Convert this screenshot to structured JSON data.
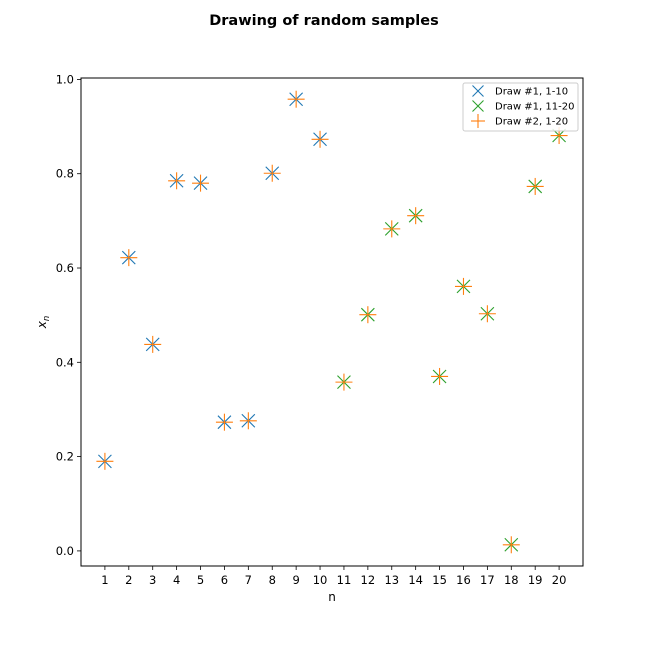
{
  "chart_data": {
    "type": "scatter",
    "title": "Drawing of random samples",
    "xlabel": "n",
    "ylabel": "x",
    "ylabel_subscript": "n",
    "xlim": [
      0,
      21
    ],
    "ylim": [
      -0.032,
      1.003
    ],
    "xticks": [
      1,
      2,
      3,
      4,
      5,
      6,
      7,
      8,
      9,
      10,
      11,
      12,
      13,
      14,
      15,
      16,
      17,
      18,
      19,
      20
    ],
    "yticks": [
      0.0,
      0.2,
      0.4,
      0.6,
      0.8,
      1.0
    ],
    "ytick_labels": [
      "0.0",
      "0.2",
      "0.4",
      "0.6",
      "0.8",
      "1.0"
    ],
    "grid": false,
    "legend_position": "upper right",
    "series": [
      {
        "name": "Draw #1, 1-10",
        "marker": "x",
        "color": "#1f77b4",
        "x": [
          1,
          2,
          3,
          4,
          5,
          6,
          7,
          8,
          9,
          10
        ],
        "y": [
          0.19,
          0.622,
          0.438,
          0.785,
          0.78,
          0.273,
          0.276,
          0.801,
          0.958,
          0.873
        ]
      },
      {
        "name": "Draw #1, 11-20",
        "marker": "x",
        "color": "#2ca02c",
        "x": [
          11,
          12,
          13,
          14,
          15,
          16,
          17,
          18,
          19,
          20
        ],
        "y": [
          0.358,
          0.501,
          0.683,
          0.711,
          0.37,
          0.561,
          0.503,
          0.013,
          0.773,
          0.881
        ]
      },
      {
        "name": "Draw #2, 1-20",
        "marker": "+",
        "color": "#ff7f0e",
        "x": [
          1,
          2,
          3,
          4,
          5,
          6,
          7,
          8,
          9,
          10,
          11,
          12,
          13,
          14,
          15,
          16,
          17,
          18,
          19,
          20
        ],
        "y": [
          0.19,
          0.622,
          0.438,
          0.785,
          0.78,
          0.273,
          0.276,
          0.801,
          0.958,
          0.873,
          0.358,
          0.501,
          0.683,
          0.711,
          0.37,
          0.561,
          0.503,
          0.013,
          0.773,
          0.881
        ]
      }
    ]
  }
}
